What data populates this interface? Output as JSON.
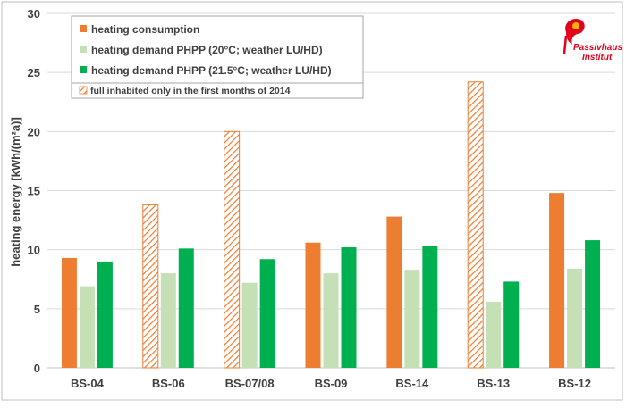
{
  "chart_data": {
    "type": "bar",
    "categories": [
      "BS-04",
      "BS-06",
      "BS-07/08",
      "BS-09",
      "BS-14",
      "BS-13",
      "BS-12"
    ],
    "series": [
      {
        "name": "heating consumption",
        "color": "#ED7D31",
        "values": [
          9.3,
          13.8,
          20.0,
          10.6,
          12.8,
          24.2,
          14.8
        ],
        "hatched": [
          false,
          true,
          true,
          false,
          false,
          true,
          false
        ]
      },
      {
        "name": "heating demand PHPP (20°C; weather LU/HD)",
        "color": "#C5E0B4",
        "values": [
          6.9,
          8.0,
          7.2,
          8.0,
          8.3,
          5.6,
          8.4
        ]
      },
      {
        "name": "heating demand PHPP (21.5°C; weather LU/HD)",
        "color": "#00B050",
        "values": [
          9.0,
          10.1,
          9.2,
          10.2,
          10.3,
          7.3,
          10.8
        ]
      }
    ],
    "legend_note": "full inhabited only in the first months of 2014",
    "ylabel": "heating energy [kWh/(m²a)]",
    "xlabel": "",
    "ylim": [
      0,
      30
    ],
    "yticks": [
      0,
      5,
      10,
      15,
      20,
      25,
      30
    ],
    "grid": "horizontal",
    "legend_position": "top-left"
  },
  "logo": {
    "line1": "Passivhaus",
    "line2": "Institut",
    "color": "#E2001A",
    "accent": "#F4B400"
  }
}
